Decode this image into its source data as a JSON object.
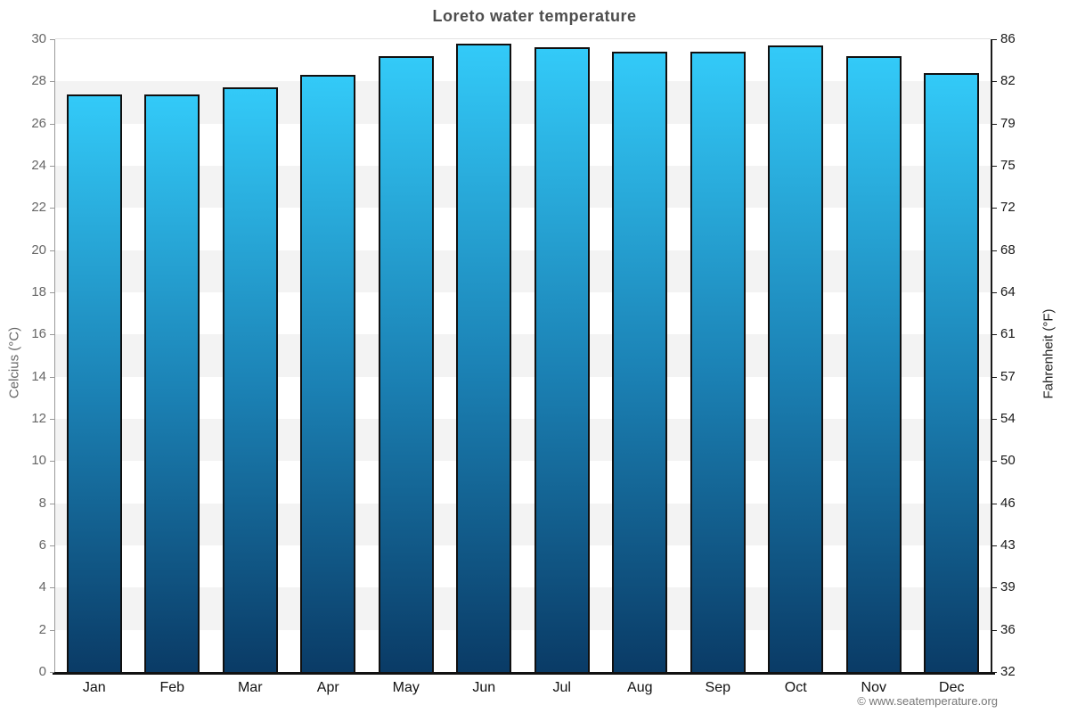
{
  "page": {
    "footer": "© www.seatemperature.org"
  },
  "chart_data": {
    "type": "bar",
    "title": "Loreto water temperature",
    "categories": [
      "Jan",
      "Feb",
      "Mar",
      "Apr",
      "May",
      "Jun",
      "Jul",
      "Aug",
      "Sep",
      "Oct",
      "Nov",
      "Dec"
    ],
    "values": [
      27.4,
      27.4,
      27.7,
      28.3,
      29.2,
      29.8,
      29.6,
      29.4,
      29.4,
      29.7,
      29.2,
      28.4
    ],
    "unit": "°C",
    "ylabel_left": "Celcius (°C)",
    "ylabel_right": "Fahrenheit (°F)",
    "yticks_celsius": [
      0,
      2,
      4,
      6,
      8,
      10,
      12,
      14,
      16,
      18,
      20,
      22,
      24,
      26,
      28,
      30
    ],
    "yticks_fahrenheit": [
      32,
      36,
      39,
      43,
      46,
      50,
      54,
      57,
      61,
      64,
      68,
      72,
      75,
      79,
      82,
      86
    ],
    "ylim": [
      0,
      30
    ],
    "grid": "alternating-horizontal-bands",
    "legend": "none",
    "colors": {
      "bar_gradient_top": "#33caf8",
      "bar_gradient_mid": "#1b81b4",
      "bar_gradient_bottom": "#0a3b66",
      "bar_border": "#101010",
      "band_gray": "#f3f3f3",
      "band_white": "#ffffff",
      "left_axis_line": "#999999",
      "right_axis_line": "#1a1a1a",
      "bottom_axis_line": "#111111",
      "top_gridline": "#e2e2e2",
      "title_text": "#4d4d4d",
      "left_tick_text": "#666666",
      "right_tick_text": "#1a1a1a",
      "month_text": "#111111",
      "footer_text": "#777777"
    }
  }
}
